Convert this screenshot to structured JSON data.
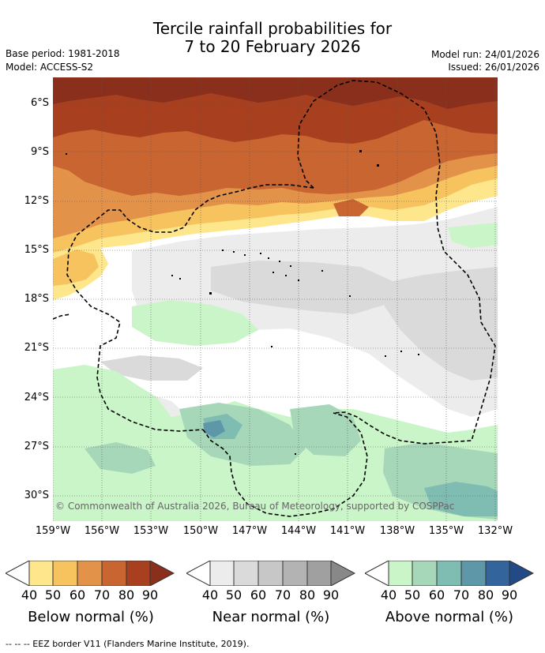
{
  "title": {
    "line1": "Tercile rainfall probabilities for",
    "line2": "7 to 20 February 2026"
  },
  "meta": {
    "base_period": "Base period: 1981-2018",
    "model": "Model: ACCESS-S2",
    "model_run": "Model run: 24/01/2026",
    "issued": "Issued: 26/01/2026"
  },
  "map": {
    "latitude_labels": [
      "6°S",
      "9°S",
      "12°S",
      "15°S",
      "18°S",
      "21°S",
      "24°S",
      "27°S",
      "30°S"
    ],
    "longitude_labels": [
      "159°W",
      "156°W",
      "153°W",
      "150°W",
      "147°W",
      "144°W",
      "141°W",
      "138°W",
      "135°W",
      "132°W"
    ],
    "copyright": "© Commonwealth of Australia 2026, Bureau of Meteorology, supported by COSPPac",
    "colors": {
      "below": [
        "#fde68c",
        "#f7c35f",
        "#e3924a",
        "#c86530",
        "#a8401f",
        "#8a2f1c"
      ],
      "near": [
        "#ececec",
        "#dadada",
        "#c7c7c7",
        "#b3b3b3",
        "#a0a0a0",
        "#888888"
      ],
      "above": [
        "#c9f5c9",
        "#a6d7b8",
        "#7fbcb1",
        "#5e97a7",
        "#33649b",
        "#224a86"
      ]
    }
  },
  "legend": {
    "ticks": [
      "40",
      "50",
      "60",
      "70",
      "80",
      "90"
    ],
    "below_label": "Below normal (%)",
    "near_label": "Near normal (%)",
    "above_label": "Above normal (%)"
  },
  "footer": "--  --  -- EEZ border V11 (Flanders Marine Institute, 2019)."
}
